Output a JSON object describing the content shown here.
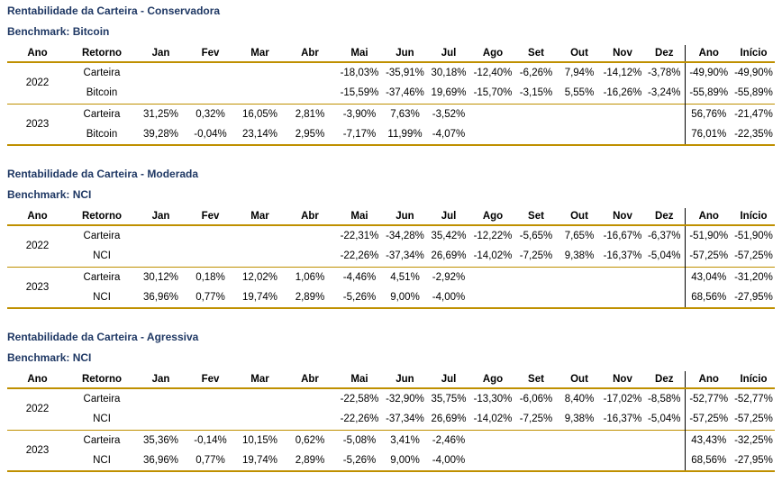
{
  "colors": {
    "title_text": "#1F3864",
    "gold_line": "#BF9000",
    "divider_line": "#000000",
    "body_text": "#000000",
    "background": "#FFFFFF"
  },
  "columns": [
    "Ano",
    "Retorno",
    "Jan",
    "Fev",
    "Mar",
    "Abr",
    "Mai",
    "Jun",
    "Jul",
    "Ago",
    "Set",
    "Out",
    "Nov",
    "Dez",
    "Ano",
    "Início"
  ],
  "sections": [
    {
      "title": "Rentabilidade da Carteira - Conservadora",
      "benchmark": "Benchmark: Bitcoin",
      "year_groups": [
        {
          "year": "2022",
          "rows": [
            {
              "label": "Carteira",
              "values": [
                "",
                "",
                "",
                "",
                "-18,03%",
                "-35,91%",
                "30,18%",
                "-12,40%",
                "-6,26%",
                "7,94%",
                "-14,12%",
                "-3,78%",
                "-49,90%",
                "-49,90%"
              ]
            },
            {
              "label": "Bitcoin",
              "values": [
                "",
                "",
                "",
                "",
                "-15,59%",
                "-37,46%",
                "19,69%",
                "-15,70%",
                "-3,15%",
                "5,55%",
                "-16,26%",
                "-3,24%",
                "-55,89%",
                "-55,89%"
              ]
            }
          ]
        },
        {
          "year": "2023",
          "rows": [
            {
              "label": "Carteira",
              "values": [
                "31,25%",
                "0,32%",
                "16,05%",
                "2,81%",
                "-3,90%",
                "7,63%",
                "-3,52%",
                "",
                "",
                "",
                "",
                "",
                "56,76%",
                "-21,47%"
              ]
            },
            {
              "label": "Bitcoin",
              "values": [
                "39,28%",
                "-0,04%",
                "23,14%",
                "2,95%",
                "-7,17%",
                "11,99%",
                "-4,07%",
                "",
                "",
                "",
                "",
                "",
                "76,01%",
                "-22,35%"
              ]
            }
          ]
        }
      ]
    },
    {
      "title": "Rentabilidade da Carteira - Moderada",
      "benchmark": "Benchmark: NCI",
      "year_groups": [
        {
          "year": "2022",
          "rows": [
            {
              "label": "Carteira",
              "values": [
                "",
                "",
                "",
                "",
                "-22,31%",
                "-34,28%",
                "35,42%",
                "-12,22%",
                "-5,65%",
                "7,65%",
                "-16,67%",
                "-6,37%",
                "-51,90%",
                "-51,90%"
              ]
            },
            {
              "label": "NCI",
              "values": [
                "",
                "",
                "",
                "",
                "-22,26%",
                "-37,34%",
                "26,69%",
                "-14,02%",
                "-7,25%",
                "9,38%",
                "-16,37%",
                "-5,04%",
                "-57,25%",
                "-57,25%"
              ]
            }
          ]
        },
        {
          "year": "2023",
          "rows": [
            {
              "label": "Carteira",
              "values": [
                "30,12%",
                "0,18%",
                "12,02%",
                "1,06%",
                "-4,46%",
                "4,51%",
                "-2,92%",
                "",
                "",
                "",
                "",
                "",
                "43,04%",
                "-31,20%"
              ]
            },
            {
              "label": "NCI",
              "values": [
                "36,96%",
                "0,77%",
                "19,74%",
                "2,89%",
                "-5,26%",
                "9,00%",
                "-4,00%",
                "",
                "",
                "",
                "",
                "",
                "68,56%",
                "-27,95%"
              ]
            }
          ]
        }
      ]
    },
    {
      "title": "Rentabilidade da Carteira - Agressiva",
      "benchmark": "Benchmark: NCI",
      "year_groups": [
        {
          "year": "2022",
          "rows": [
            {
              "label": "Carteira",
              "values": [
                "",
                "",
                "",
                "",
                "-22,58%",
                "-32,90%",
                "35,75%",
                "-13,30%",
                "-6,06%",
                "8,40%",
                "-17,02%",
                "-8,58%",
                "-52,77%",
                "-52,77%"
              ]
            },
            {
              "label": "NCI",
              "values": [
                "",
                "",
                "",
                "",
                "-22,26%",
                "-37,34%",
                "26,69%",
                "-14,02%",
                "-7,25%",
                "9,38%",
                "-16,37%",
                "-5,04%",
                "-57,25%",
                "-57,25%"
              ]
            }
          ]
        },
        {
          "year": "2023",
          "rows": [
            {
              "label": "Carteira",
              "values": [
                "35,36%",
                "-0,14%",
                "10,15%",
                "0,62%",
                "-5,08%",
                "3,41%",
                "-2,46%",
                "",
                "",
                "",
                "",
                "",
                "43,43%",
                "-32,25%"
              ]
            },
            {
              "label": "NCI",
              "values": [
                "36,96%",
                "0,77%",
                "19,74%",
                "2,89%",
                "-5,26%",
                "9,00%",
                "-4,00%",
                "",
                "",
                "",
                "",
                "",
                "68,56%",
                "-27,95%"
              ]
            }
          ]
        }
      ]
    }
  ]
}
